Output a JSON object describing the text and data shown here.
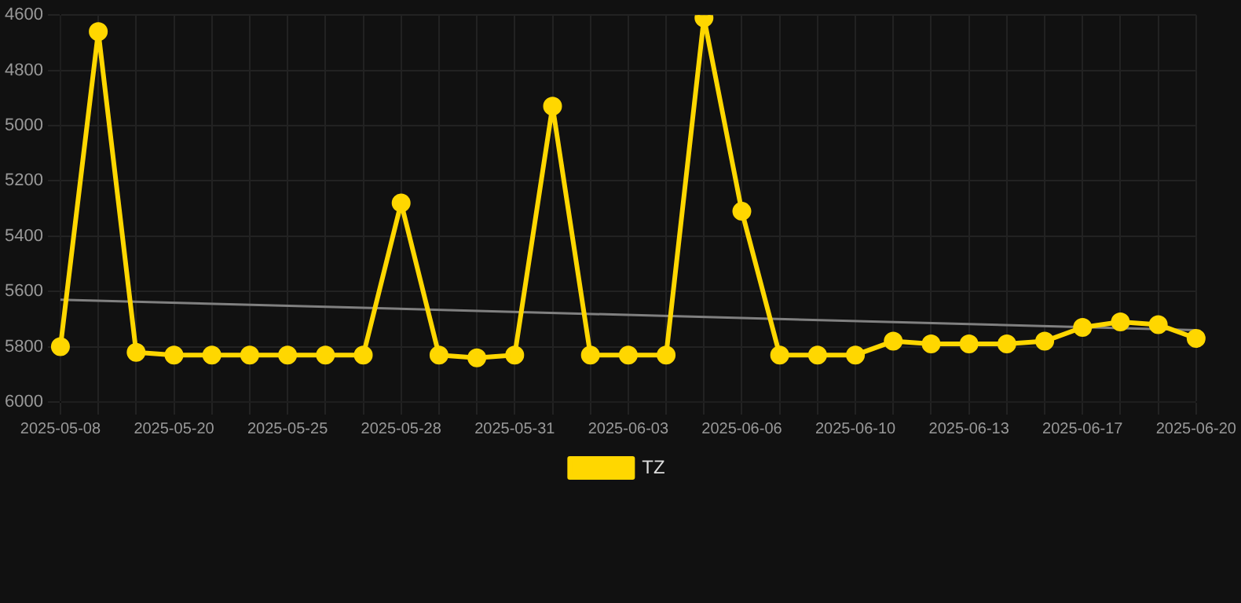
{
  "chart_data": {
    "type": "line",
    "categories": [
      "2025-05-08",
      null,
      null,
      "2025-05-20",
      null,
      null,
      "2025-05-25",
      null,
      null,
      "2025-05-28",
      null,
      null,
      "2025-05-31",
      null,
      null,
      "2025-06-03",
      null,
      null,
      "2025-06-06",
      null,
      null,
      "2025-06-10",
      null,
      null,
      "2025-06-13",
      null,
      null,
      "2025-06-17",
      null,
      null,
      "2025-06-20"
    ],
    "series": [
      {
        "name": "TZ",
        "color": "#ffd700",
        "marker": "circle",
        "values": [
          5800,
          4660,
          5820,
          5830,
          5830,
          5830,
          5830,
          5830,
          5830,
          5280,
          5830,
          5840,
          5830,
          4930,
          5830,
          5830,
          5830,
          4610,
          5310,
          5830,
          5830,
          5830,
          5780,
          5790,
          5790,
          5790,
          5780,
          5730,
          5710,
          5720,
          5770
        ]
      },
      {
        "type": "line",
        "color": "#808080",
        "marker": "none",
        "values": [
          5630,
          null,
          null,
          null,
          null,
          null,
          null,
          null,
          null,
          null,
          null,
          null,
          null,
          null,
          null,
          null,
          null,
          null,
          null,
          null,
          null,
          null,
          null,
          null,
          null,
          null,
          null,
          null,
          null,
          null,
          5740
        ]
      }
    ],
    "ylim": [
      6000,
      4600
    ],
    "yticks": [
      4600,
      4800,
      5000,
      5200,
      5400,
      5600,
      5800,
      6000
    ],
    "grid": true,
    "legend": "bottom"
  }
}
